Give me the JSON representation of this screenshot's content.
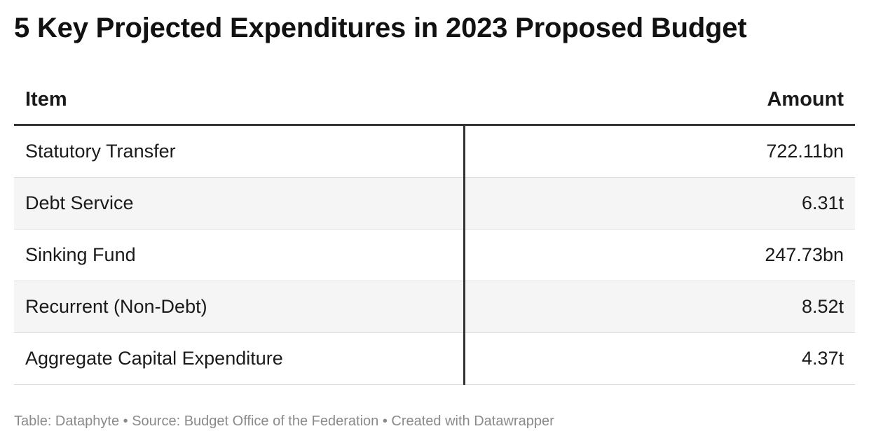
{
  "title": "5 Key Projected Expenditures in 2023 Proposed Budget",
  "chart_data": {
    "type": "table",
    "title": "5 Key Projected Expenditures in 2023 Proposed Budget",
    "columns": [
      "Item",
      "Amount"
    ],
    "rows": [
      {
        "item": "Statutory Transfer",
        "amount": "722.11bn"
      },
      {
        "item": "Debt Service",
        "amount": "6.31t"
      },
      {
        "item": "Sinking Fund",
        "amount": "247.73bn"
      },
      {
        "item": "Recurrent (Non-Debt)",
        "amount": "8.52t"
      },
      {
        "item": "Aggregate Capital Expenditure",
        "amount": "4.37t"
      }
    ]
  },
  "footer": "Table: Dataphyte • Source: Budget Office of the Federation • Created with Datawrapper",
  "colors": {
    "text": "#1a1a1a",
    "rule": "#333333",
    "alt_row": "#f5f5f5",
    "footer": "#8a8a8a"
  }
}
